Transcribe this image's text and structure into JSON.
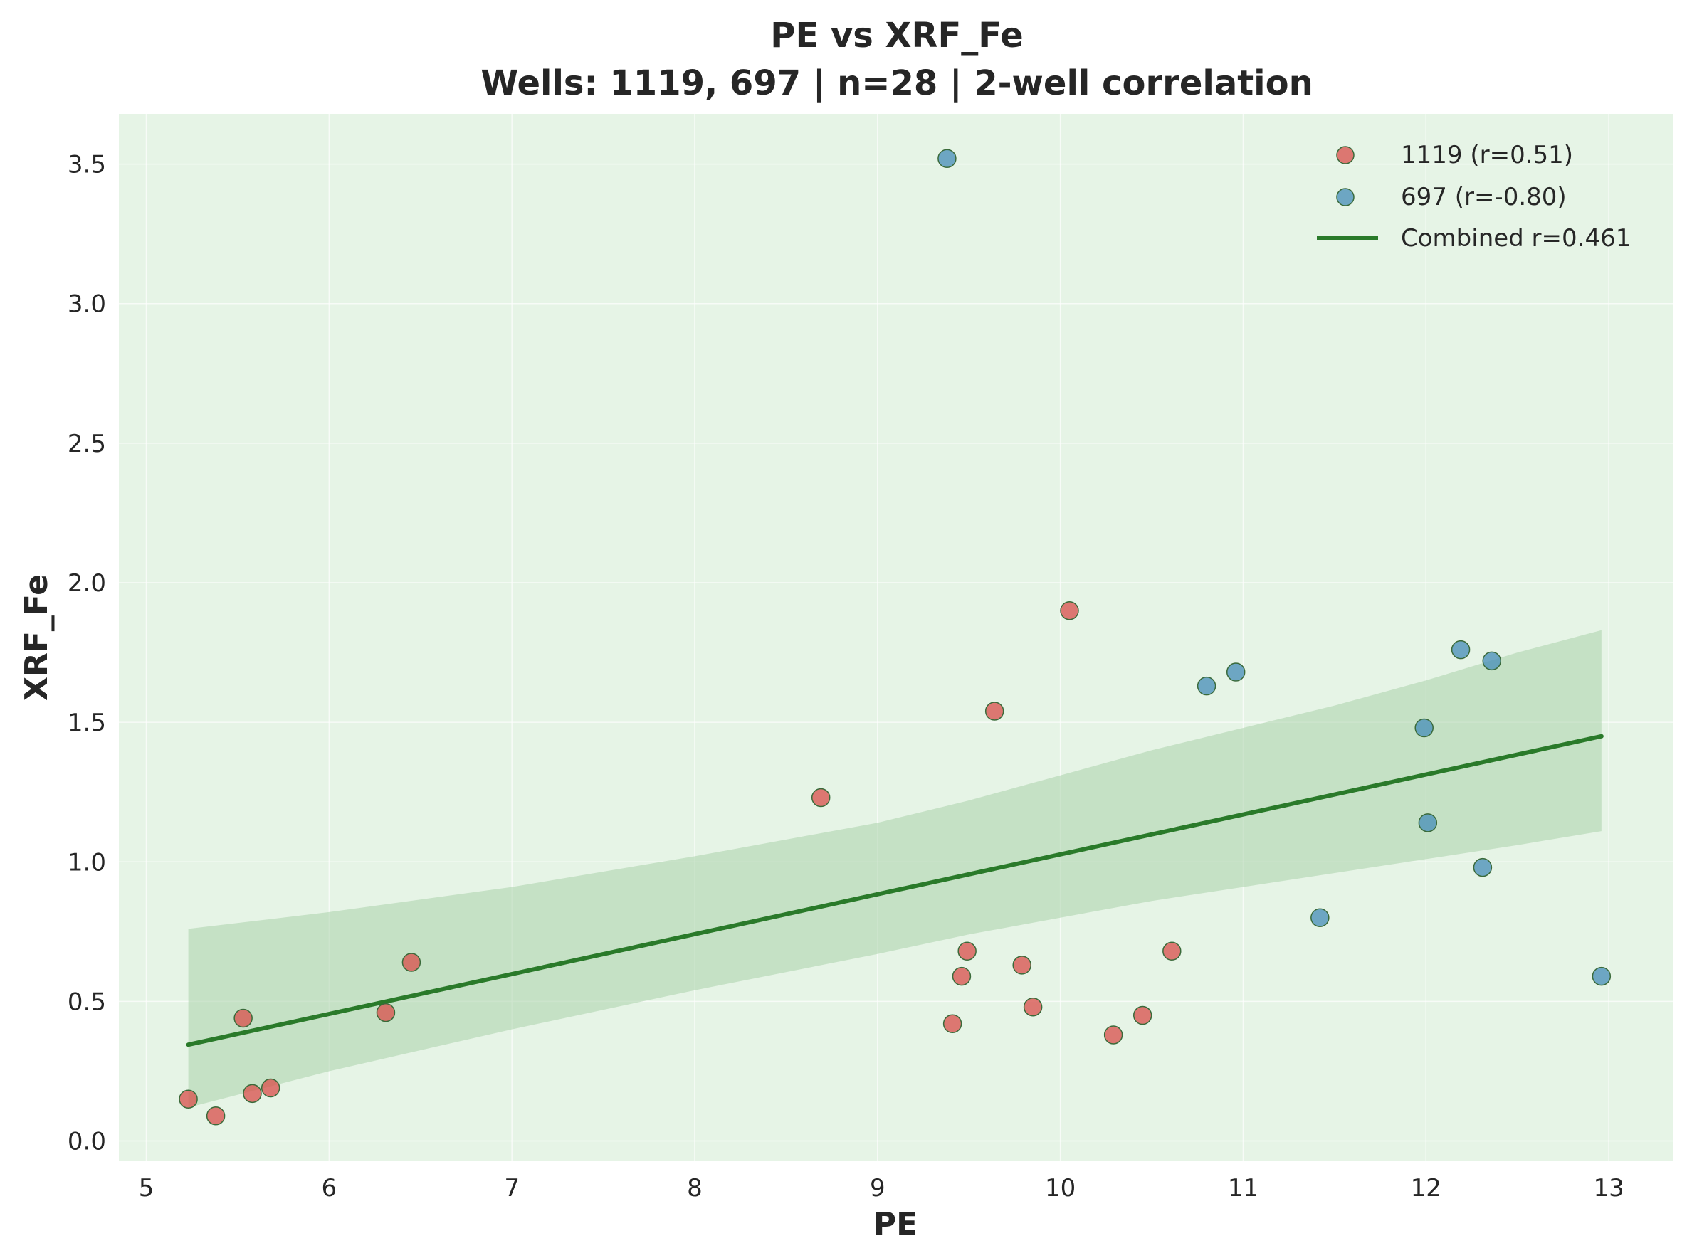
{
  "chart_data": {
    "type": "scatter",
    "title": "PE vs XRF_Fe",
    "subtitle": "Wells: 1119, 697 | n=28 | 2-well correlation",
    "xlabel": "PE",
    "ylabel": "XRF_Fe",
    "xlim": [
      4.85,
      13.35
    ],
    "ylim": [
      -0.07,
      3.68
    ],
    "xticks": [
      5,
      6,
      7,
      8,
      9,
      10,
      11,
      12,
      13
    ],
    "yticks": [
      0.0,
      0.5,
      1.0,
      1.5,
      2.0,
      2.5,
      3.0,
      3.5
    ],
    "ytick_labels": [
      "0.0",
      "0.5",
      "1.0",
      "1.5",
      "2.0",
      "2.5",
      "3.0",
      "3.5"
    ],
    "grid": true,
    "legend_position": "top-right",
    "background_color": "#e6f4e6",
    "series": [
      {
        "name": "1119 (r=0.51)",
        "color": "#d9534f",
        "marker": "circle",
        "points": [
          {
            "x": 5.23,
            "y": 0.15
          },
          {
            "x": 5.38,
            "y": 0.09
          },
          {
            "x": 5.53,
            "y": 0.44
          },
          {
            "x": 5.58,
            "y": 0.17
          },
          {
            "x": 5.68,
            "y": 0.19
          },
          {
            "x": 6.31,
            "y": 0.46
          },
          {
            "x": 6.45,
            "y": 0.64
          },
          {
            "x": 8.69,
            "y": 1.23
          },
          {
            "x": 9.41,
            "y": 0.42
          },
          {
            "x": 9.46,
            "y": 0.59
          },
          {
            "x": 9.49,
            "y": 0.68
          },
          {
            "x": 9.64,
            "y": 1.54
          },
          {
            "x": 9.79,
            "y": 0.63
          },
          {
            "x": 9.85,
            "y": 0.48
          },
          {
            "x": 10.05,
            "y": 1.9
          },
          {
            "x": 10.29,
            "y": 0.38
          },
          {
            "x": 10.45,
            "y": 0.45
          },
          {
            "x": 10.61,
            "y": 0.68
          }
        ]
      },
      {
        "name": "697 (r=-0.80)",
        "color": "#4a90b8",
        "marker": "circle",
        "points": [
          {
            "x": 9.38,
            "y": 3.52
          },
          {
            "x": 10.8,
            "y": 1.63
          },
          {
            "x": 10.96,
            "y": 1.68
          },
          {
            "x": 11.42,
            "y": 0.8
          },
          {
            "x": 11.99,
            "y": 1.48
          },
          {
            "x": 12.01,
            "y": 1.14
          },
          {
            "x": 12.19,
            "y": 1.76
          },
          {
            "x": 12.31,
            "y": 0.98
          },
          {
            "x": 12.36,
            "y": 1.72
          },
          {
            "x": 12.96,
            "y": 0.59
          }
        ]
      }
    ],
    "fit_line": {
      "name": "Combined r=0.461",
      "color": "#2a7a2a",
      "x": [
        5.23,
        12.96
      ],
      "y": [
        0.345,
        1.45
      ]
    },
    "confidence_band": {
      "color": "#a9d2a9",
      "x": [
        5.23,
        6.0,
        7.0,
        8.0,
        9.0,
        9.5,
        10.0,
        10.5,
        11.0,
        11.5,
        12.0,
        12.5,
        12.96
      ],
      "upper": [
        0.76,
        0.82,
        0.91,
        1.02,
        1.14,
        1.22,
        1.31,
        1.4,
        1.48,
        1.56,
        1.65,
        1.75,
        1.83
      ],
      "lower": [
        0.12,
        0.25,
        0.4,
        0.54,
        0.67,
        0.74,
        0.8,
        0.86,
        0.91,
        0.96,
        1.01,
        1.06,
        1.11
      ]
    }
  }
}
